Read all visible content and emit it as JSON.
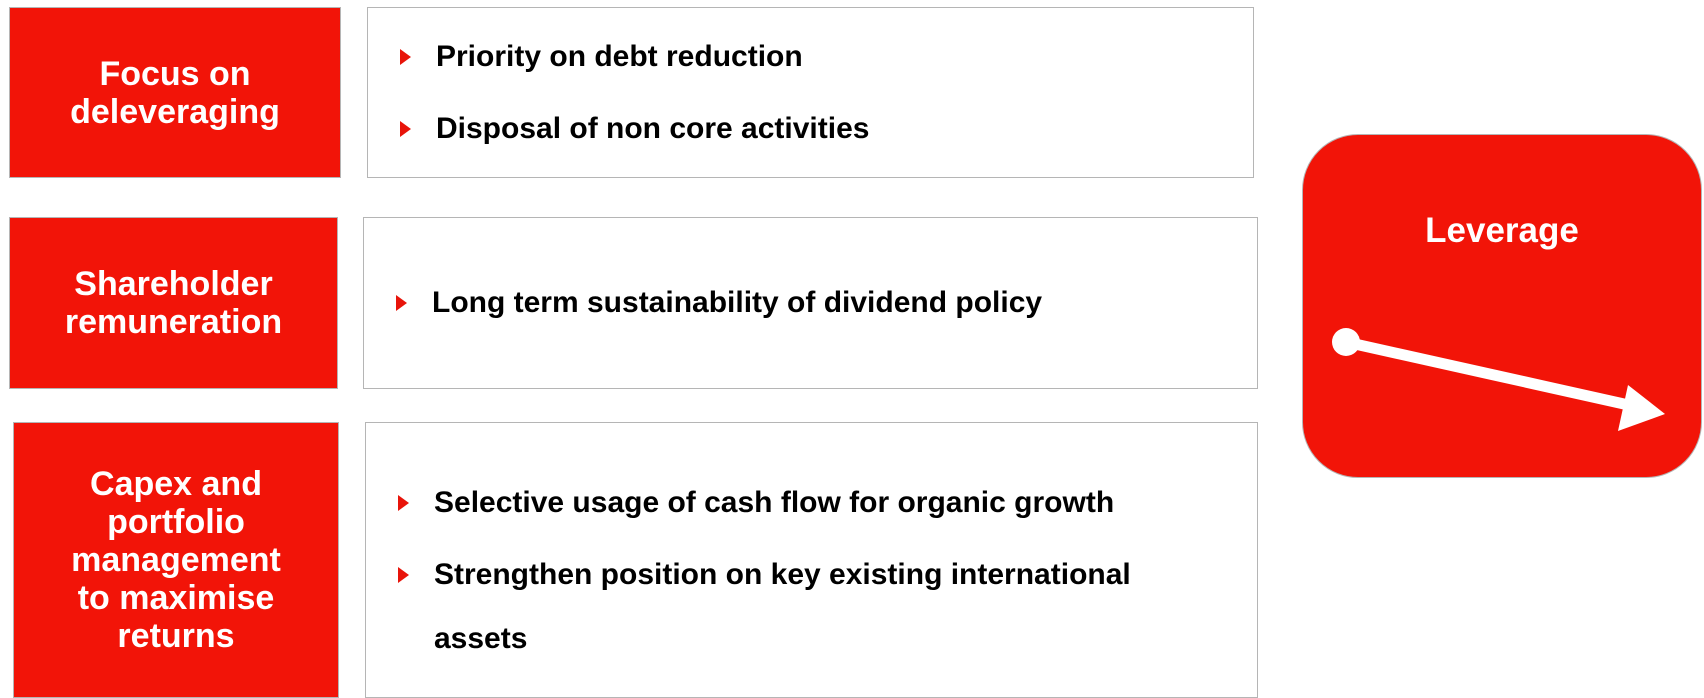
{
  "rows": [
    {
      "label": [
        "Focus on",
        "deleveraging"
      ],
      "bullets": [
        "Priority on debt reduction",
        "Disposal of non core activities"
      ]
    },
    {
      "label": [
        "Shareholder",
        "remuneration"
      ],
      "bullets": [
        "Long term sustainability of dividend policy"
      ]
    },
    {
      "label": [
        "Capex and",
        "portfolio",
        "management",
        "to maximise",
        "returns"
      ],
      "bullets": [
        "Selective usage of cash flow for organic growth",
        "Strengthen position on key existing international assets"
      ]
    }
  ],
  "side": {
    "title": "Leverage"
  }
}
